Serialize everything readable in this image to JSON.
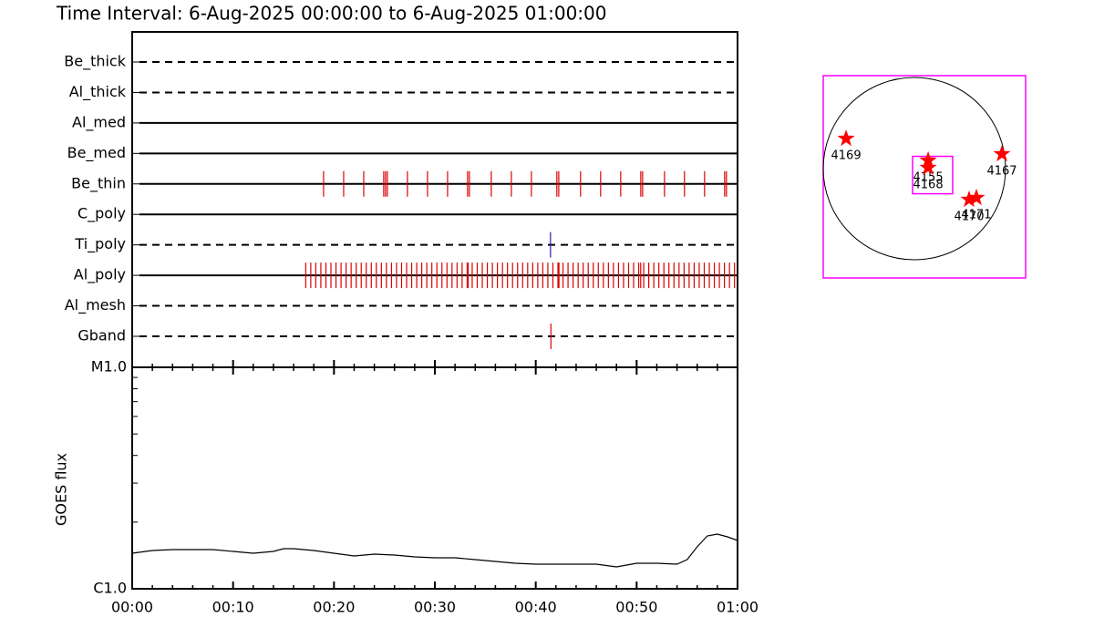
{
  "chart_data": [
    {
      "type": "event",
      "title": "Time Interval:  6-Aug-2025 00:00:00 to  6-Aug-2025 01:00:00",
      "categories": [
        "Be_thick",
        "Al_thick",
        "Al_med",
        "Be_med",
        "Be_thin",
        "C_poly",
        "Ti_poly",
        "Al_poly",
        "Al_mesh",
        "Gband"
      ],
      "line_styles": [
        "dashed",
        "dashed",
        "solid",
        "solid",
        "solid",
        "solid",
        "dashed",
        "solid",
        "dashed",
        "dashed"
      ],
      "colors": [
        "#dd0000",
        "#dd0000",
        "#dd0000",
        "#dd0000",
        "#dd0000",
        "#dd0000",
        "#2222aa",
        "#dd0000",
        "#dd0000",
        "#dd0000"
      ],
      "xlim": [
        0,
        60
      ],
      "events": [
        [],
        [],
        [],
        [],
        [
          18.97,
          20.96,
          22.95,
          24.93,
          25.11,
          25.29,
          27.28,
          29.27,
          31.26,
          33.24,
          33.42,
          35.59,
          37.58,
          39.57,
          42.09,
          42.28,
          44.44,
          46.43,
          48.42,
          50.41,
          50.59,
          52.76,
          54.74,
          56.73,
          58.72,
          58.9
        ],
        [],
        [
          41.46
        ],
        [
          17.2,
          17.7,
          18.2,
          18.7,
          19.2,
          19.7,
          20.2,
          20.7,
          21.2,
          21.7,
          22.2,
          22.7,
          23.2,
          23.7,
          24.2,
          24.7,
          25.2,
          25.7,
          26.2,
          26.7,
          27.2,
          27.7,
          28.2,
          28.7,
          29.2,
          29.7,
          30.2,
          30.7,
          31.2,
          31.7,
          32.2,
          32.7,
          33.2,
          33.3,
          33.7,
          34.2,
          34.7,
          35.2,
          35.7,
          36.2,
          36.7,
          37.2,
          37.7,
          38.2,
          38.7,
          39.2,
          39.7,
          40.2,
          40.7,
          41.2,
          41.7,
          42.2,
          42.3,
          42.7,
          43.2,
          43.7,
          44.2,
          44.7,
          45.2,
          45.7,
          46.2,
          46.7,
          47.2,
          47.7,
          48.2,
          48.7,
          49.2,
          49.7,
          50.2,
          50.4,
          50.7,
          51.2,
          51.7,
          52.2,
          52.7,
          53.2,
          53.7,
          54.2,
          54.7,
          55.2,
          55.7,
          56.2,
          56.7,
          57.2,
          57.7,
          58.2,
          58.7,
          59.2,
          59.7
        ],
        [],
        [
          41.5
        ]
      ]
    },
    {
      "type": "line",
      "ylabel": "GOES flux",
      "log_y": true,
      "color": "#000000",
      "x": [
        0,
        2,
        4,
        6,
        8,
        10,
        12,
        14,
        15,
        16,
        18,
        20,
        22,
        24,
        26,
        28,
        30,
        32,
        34,
        36,
        38,
        40,
        42,
        44,
        46,
        48,
        50,
        52,
        54,
        55,
        56,
        57,
        58,
        59,
        60
      ],
      "values": [
        1.447e-06,
        1.489e-06,
        1.503e-06,
        1.503e-06,
        1.503e-06,
        1.475e-06,
        1.447e-06,
        1.475e-06,
        1.517e-06,
        1.517e-06,
        1.489e-06,
        1.447e-06,
        1.406e-06,
        1.434e-06,
        1.42e-06,
        1.393e-06,
        1.38e-06,
        1.38e-06,
        1.354e-06,
        1.329e-06,
        1.304e-06,
        1.291e-06,
        1.291e-06,
        1.291e-06,
        1.291e-06,
        1.255e-06,
        1.304e-06,
        1.304e-06,
        1.291e-06,
        1.354e-06,
        1.546e-06,
        1.733e-06,
        1.766e-06,
        1.717e-06,
        1.652e-06
      ],
      "xlim": [
        0,
        60
      ],
      "xticks": [
        {
          "value": 0,
          "label": "00:00"
        },
        {
          "value": 10,
          "label": "00:10"
        },
        {
          "value": 20,
          "label": "00:20"
        },
        {
          "value": 30,
          "label": "00:30"
        },
        {
          "value": 40,
          "label": "00:40"
        },
        {
          "value": 50,
          "label": "00:50"
        },
        {
          "value": 60,
          "label": "01:00"
        }
      ],
      "xminorticks": [
        2,
        4,
        6,
        8,
        12,
        14,
        16,
        18,
        22,
        24,
        26,
        28,
        32,
        34,
        36,
        38,
        42,
        44,
        46,
        48,
        52,
        54,
        56,
        58
      ],
      "ylim": [
        1e-06,
        1e-05
      ],
      "yticks": [
        {
          "value": 1e-06,
          "label": "C1.0"
        },
        {
          "value": 1e-05,
          "label": "M1.0"
        }
      ],
      "yminorticks": [
        2e-06,
        3e-06,
        4e-06,
        5e-06,
        6e-06,
        7e-06,
        8e-06,
        9e-06
      ]
    },
    {
      "type": "map",
      "color": "#ff0000",
      "box_color": "#ff00ff",
      "fov": {
        "x": 190,
        "y": -67,
        "width": 418,
        "height": 390
      },
      "regions": [
        {
          "label": "4169",
          "x": -712,
          "y": 313
        },
        {
          "label": "4167",
          "x": 912,
          "y": 152
        },
        {
          "label": "4155",
          "x": 143,
          "y": 86
        },
        {
          "label": "4168",
          "x": 143,
          "y": 10
        },
        {
          "label": "4170",
          "x": 570,
          "y": -323
        },
        {
          "label": "4171",
          "x": 646,
          "y": -304
        }
      ]
    }
  ]
}
